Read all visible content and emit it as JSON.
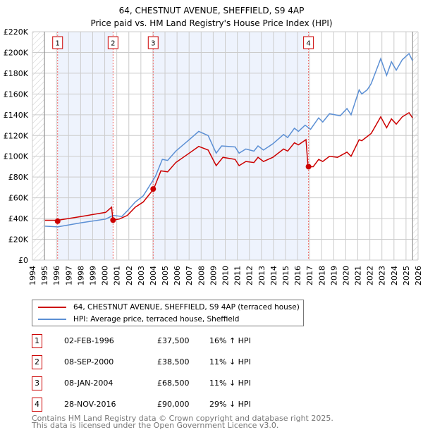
{
  "chart_data": {
    "type": "line",
    "title": "64, CHESTNUT AVENUE, SHEFFIELD, S9 4AP",
    "subtitle": "Price paid vs. HM Land Registry's House Price Index (HPI)",
    "xlim": [
      1994,
      2026
    ],
    "ylim": [
      0,
      220000
    ],
    "x_ticks": [
      "1994",
      "1995",
      "1996",
      "1997",
      "1998",
      "1999",
      "2000",
      "2001",
      "2002",
      "2003",
      "2004",
      "2005",
      "2006",
      "2007",
      "2008",
      "2009",
      "2010",
      "2011",
      "2012",
      "2013",
      "2014",
      "2015",
      "2016",
      "2017",
      "2018",
      "2019",
      "2020",
      "2021",
      "2022",
      "2023",
      "2024",
      "2025",
      "2026"
    ],
    "y_ticks": [
      "£0",
      "£20K",
      "£40K",
      "£60K",
      "£80K",
      "£100K",
      "£120K",
      "£140K",
      "£160K",
      "£180K",
      "£200K",
      "£220K"
    ],
    "grid": true,
    "series": [
      {
        "name": "64, CHESTNUT AVENUE, SHEFFIELD, S9 4AP (terraced house)",
        "color": "#cc0000",
        "x": [
          1995.04,
          1996.1,
          1998.06,
          2000.08,
          2000.57,
          2000.68,
          2001.2,
          2001.87,
          2002.54,
          2003.2,
          2004.06,
          2004.66,
          2005.22,
          2005.9,
          2007.01,
          2007.8,
          2008.58,
          2009.25,
          2009.81,
          2010.82,
          2011.15,
          2011.71,
          2012.38,
          2012.72,
          2013.17,
          2013.95,
          2014.84,
          2015.18,
          2015.74,
          2016.07,
          2016.7,
          2016.86,
          2016.92,
          2017.3,
          2017.75,
          2018.09,
          2018.65,
          2019.32,
          2020.1,
          2020.44,
          2021.11,
          2021.33,
          2022.11,
          2022.9,
          2023.39,
          2023.79,
          2024.19,
          2024.69,
          2025.25,
          2025.54
        ],
        "y": [
          38400,
          38400,
          42000,
          46000,
          51000,
          38500,
          39500,
          43000,
          51000,
          56000,
          68500,
          86000,
          85000,
          94000,
          103000,
          109500,
          106000,
          91000,
          99000,
          97000,
          91000,
          95000,
          94000,
          99000,
          95000,
          99000,
          107000,
          105000,
          113000,
          111000,
          116000,
          91400,
          90000,
          90000,
          97000,
          95000,
          100000,
          99000,
          104000,
          100000,
          116000,
          115000,
          122000,
          138000,
          127500,
          136000,
          131000,
          138000,
          142000,
          137000
        ]
      },
      {
        "name": "HPI: Average price, terraced house, Sheffield",
        "color": "#5b8fd4",
        "x": [
          1995.04,
          1996.1,
          1998.06,
          2000.08,
          2000.68,
          2001.42,
          2001.87,
          2002.54,
          2003.2,
          2003.88,
          2004.22,
          2004.78,
          2005.22,
          2005.9,
          2007.01,
          2007.8,
          2008.58,
          2009.25,
          2009.7,
          2010.82,
          2011.15,
          2011.71,
          2012.38,
          2012.72,
          2013.17,
          2013.95,
          2014.84,
          2015.18,
          2015.74,
          2016.07,
          2016.63,
          2017.08,
          2017.75,
          2018.09,
          2018.65,
          2019.54,
          2020.1,
          2020.44,
          2021.11,
          2021.33,
          2021.78,
          2022.11,
          2022.9,
          2023.39,
          2023.79,
          2024.19,
          2024.69,
          2025.25,
          2025.54
        ],
        "y": [
          32700,
          32000,
          36000,
          39500,
          43000,
          42000,
          47400,
          56000,
          62000,
          74500,
          81000,
          97000,
          96000,
          105000,
          116000,
          124000,
          120000,
          103000,
          110000,
          109000,
          103000,
          107000,
          105000,
          110000,
          106000,
          112000,
          121000,
          118000,
          127000,
          124000,
          130000,
          126000,
          137000,
          133000,
          141000,
          139000,
          146000,
          140000,
          164000,
          160000,
          164000,
          170000,
          194000,
          178000,
          191000,
          183000,
          193000,
          199000,
          192000
        ]
      }
    ],
    "sales": [
      {
        "n": "1",
        "date": "02-FEB-1996",
        "x": 1996.09,
        "price": "£37,500",
        "value": 37500,
        "hpi": "16% ↑ HPI"
      },
      {
        "n": "2",
        "date": "08-SEP-2000",
        "x": 2000.69,
        "price": "£38,500",
        "value": 38500,
        "hpi": "11% ↓ HPI"
      },
      {
        "n": "3",
        "date": "08-JAN-2004",
        "x": 2004.02,
        "price": "£68,500",
        "value": 68500,
        "hpi": "11% ↓ HPI"
      },
      {
        "n": "4",
        "date": "28-NOV-2016",
        "x": 2016.91,
        "price": "£90,000",
        "value": 90000,
        "hpi": "29% ↓ HPI"
      }
    ],
    "legend_position": "below"
  },
  "footer": {
    "line1": "Contains HM Land Registry data © Crown copyright and database right 2025.",
    "line2": "This data is licensed under the Open Government Licence v3.0."
  }
}
